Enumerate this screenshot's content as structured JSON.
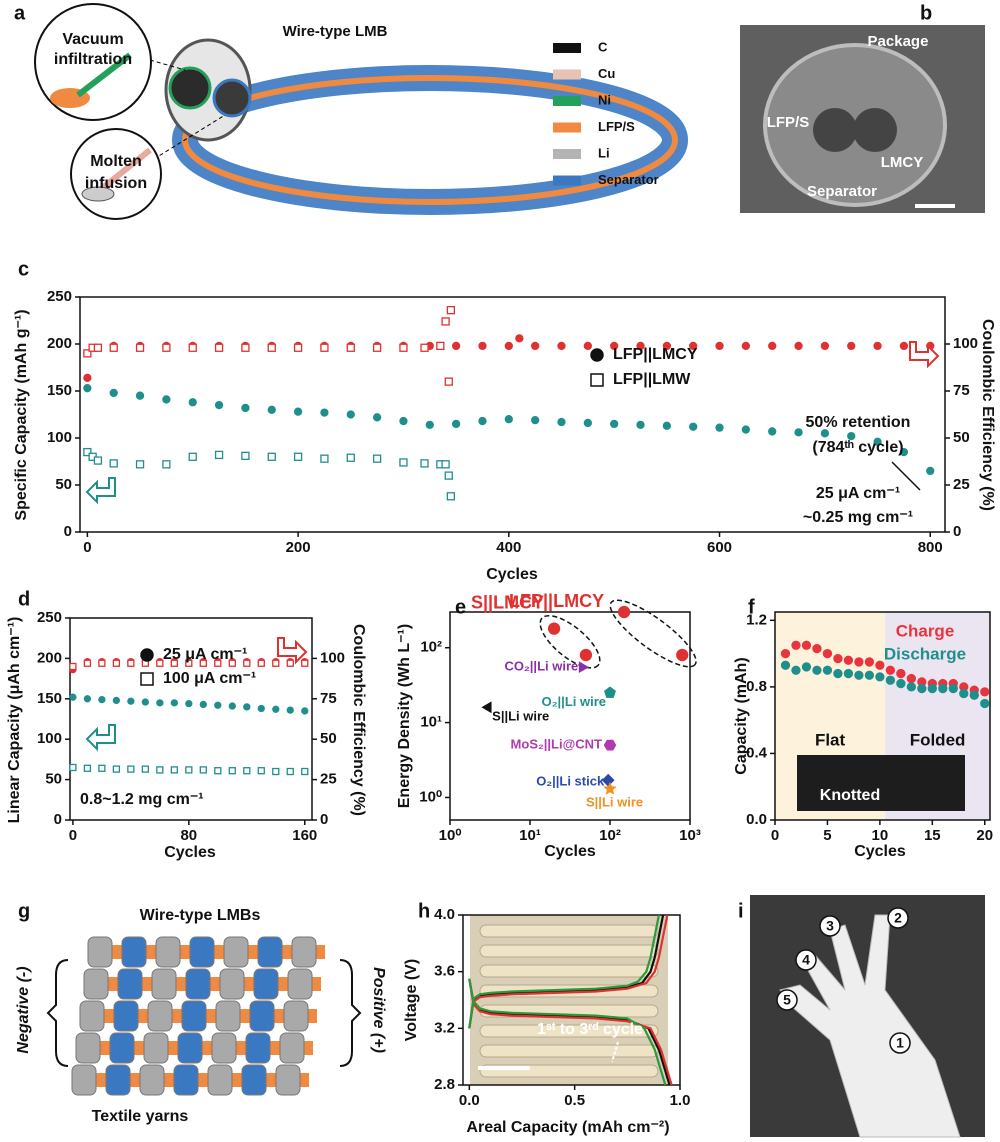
{
  "panel_labels": [
    "a",
    "b",
    "c",
    "d",
    "e",
    "f",
    "g",
    "h",
    "i"
  ],
  "diagram_a": {
    "title": "Wire-type LMB",
    "callouts": [
      [
        "Vacuum",
        "infiltration"
      ],
      [
        "Molten",
        "infusion"
      ]
    ],
    "legend": [
      {
        "label": "C",
        "color": "#111111"
      },
      {
        "label": "Cu",
        "color": "#e8c2b2"
      },
      {
        "label": "Ni",
        "color": "#23a05a"
      },
      {
        "label": "LFP/S",
        "color": "#f08a40"
      },
      {
        "label": "Li",
        "color": "#b4b4b4"
      },
      {
        "label": "Separator",
        "color": "#3a78c2"
      }
    ]
  },
  "image_b": {
    "labels": [
      "Package",
      "LFP/S",
      "LMCY",
      "Separator"
    ]
  },
  "chart_data": [
    {
      "type": "scatter",
      "xlabel": "Cycles",
      "ylabel": "Specific Capacity (mAh g⁻¹)",
      "y2label": "Coulombic Efficiency (%)",
      "xlim": [
        -7,
        814
      ],
      "xticks": [
        0,
        200,
        400,
        600,
        800
      ],
      "ylim": [
        0,
        250
      ],
      "yticks": [
        0,
        50,
        100,
        150,
        200,
        250
      ],
      "y2lim": [
        0,
        125
      ],
      "y2ticks": [
        0,
        25,
        50,
        75,
        100
      ],
      "legend": "center-right",
      "series": [
        {
          "name": "LFP||LMCY",
          "color": "#1f8f8c",
          "marker": "circle",
          "filled": true,
          "x": [
            0,
            25,
            50,
            75,
            100,
            125,
            150,
            175,
            200,
            225,
            250,
            275,
            300,
            325,
            350,
            375,
            400,
            425,
            450,
            475,
            500,
            525,
            550,
            575,
            600,
            625,
            650,
            675,
            700,
            725,
            750,
            775,
            800
          ],
          "values": [
            153,
            148,
            145,
            141,
            138,
            135,
            132,
            130,
            128,
            127,
            125,
            122,
            118,
            114,
            115,
            118,
            120,
            119,
            117,
            116,
            115,
            114,
            113,
            112,
            111,
            109,
            107,
            106,
            105,
            102,
            96,
            85,
            65
          ]
        },
        {
          "name": "LFP||LMW",
          "color": "#1f8f8c",
          "marker": "square",
          "filled": false,
          "x": [
            0,
            5,
            10,
            25,
            50,
            75,
            100,
            125,
            150,
            175,
            200,
            225,
            250,
            275,
            300,
            320,
            335,
            340,
            343,
            345
          ],
          "values": [
            85,
            80,
            76,
            73,
            72,
            72,
            80,
            82,
            81,
            80,
            80,
            78,
            79,
            78,
            74,
            73,
            72,
            72,
            60,
            38
          ]
        },
        {
          "name": "LFP||LMCY",
          "color": "#e03131",
          "marker": "circle",
          "filled": true,
          "axis": "y2",
          "x": [
            0,
            25,
            50,
            75,
            100,
            125,
            150,
            175,
            200,
            225,
            250,
            275,
            300,
            325,
            350,
            375,
            400,
            410,
            425,
            450,
            475,
            500,
            525,
            550,
            575,
            600,
            625,
            650,
            675,
            700,
            725,
            750,
            775,
            800
          ],
          "values": [
            82,
            99,
            99,
            99,
            99,
            99,
            99,
            99,
            99,
            99,
            99,
            99,
            99,
            99,
            99,
            99,
            99,
            103,
            99,
            99,
            99,
            99,
            99,
            99,
            99,
            99,
            99,
            99,
            99,
            99,
            99,
            99,
            99,
            99
          ]
        },
        {
          "name": "LFP||LMW",
          "color": "#e03131",
          "marker": "square",
          "filled": false,
          "axis": "y2",
          "x": [
            0,
            5,
            10,
            25,
            50,
            75,
            100,
            125,
            150,
            175,
            200,
            225,
            250,
            275,
            300,
            320,
            335,
            340,
            343,
            345
          ],
          "values": [
            95,
            98,
            98,
            98,
            98,
            98,
            98,
            98,
            98,
            98,
            98,
            98,
            98,
            98,
            98,
            98,
            99,
            112,
            80,
            118
          ]
        }
      ],
      "annotations": [
        "50% retention",
        "(784ᵗʰ cycle)",
        "25 μA cm⁻¹",
        "~0.25 mg cm⁻¹"
      ]
    },
    {
      "type": "scatter",
      "xlabel": "Cycles",
      "ylabel": "Linear Capacity (μAh cm⁻¹)",
      "y2label": "Coulombic Efficiency (%)",
      "xlim": [
        -2,
        165
      ],
      "xticks": [
        0,
        80,
        160
      ],
      "ylim": [
        0,
        250
      ],
      "yticks": [
        0,
        50,
        100,
        150,
        200,
        250
      ],
      "y2lim": [
        0,
        125
      ],
      "y2ticks": [
        0,
        25,
        50,
        75,
        100
      ],
      "legend": "top-center",
      "series": [
        {
          "name": "25 μA cm⁻¹",
          "color": "#1f8f8c",
          "marker": "circle",
          "filled": true,
          "x": [
            0,
            10,
            20,
            30,
            40,
            50,
            60,
            70,
            80,
            90,
            100,
            110,
            120,
            130,
            140,
            150,
            160
          ],
          "values": [
            152,
            150,
            149,
            148,
            147,
            146,
            145,
            145,
            144,
            143,
            142,
            141,
            140,
            138,
            137,
            136,
            135
          ]
        },
        {
          "name": "100 μA cm⁻¹",
          "color": "#1f8f8c",
          "marker": "square",
          "filled": false,
          "x": [
            0,
            10,
            20,
            30,
            40,
            50,
            60,
            70,
            80,
            90,
            100,
            110,
            120,
            130,
            140,
            150,
            160
          ],
          "values": [
            65,
            64,
            64,
            63,
            63,
            63,
            62,
            62,
            62,
            62,
            61,
            61,
            61,
            61,
            60,
            60,
            60
          ]
        },
        {
          "name": "25 μA cm⁻¹",
          "color": "#e03131",
          "marker": "circle",
          "filled": true,
          "axis": "y2",
          "x": [
            0,
            10,
            20,
            30,
            40,
            50,
            60,
            70,
            80,
            90,
            100,
            110,
            120,
            130,
            140,
            150,
            160
          ],
          "values": [
            93,
            98,
            98,
            98,
            98,
            98,
            98,
            98,
            98,
            98,
            98,
            98,
            98,
            98,
            98,
            98,
            98
          ]
        },
        {
          "name": "100 μA cm⁻¹",
          "color": "#e03131",
          "marker": "square",
          "filled": false,
          "axis": "y2",
          "x": [
            0,
            10,
            20,
            30,
            40,
            50,
            60,
            70,
            80,
            90,
            100,
            110,
            120,
            130,
            140,
            150,
            160
          ],
          "values": [
            95,
            97,
            97,
            97,
            97,
            97,
            97,
            97,
            97,
            97,
            97,
            97,
            97,
            97,
            97,
            97,
            97
          ]
        }
      ],
      "annotations": [
        "0.8~1.2 mg cm⁻¹"
      ]
    },
    {
      "type": "scatter",
      "xlabel": "Cycles",
      "ylabel": "Energy Density  (Wh L⁻¹)",
      "xlog": true,
      "ylog": true,
      "xlim": [
        1,
        1000
      ],
      "xticks": [
        {
          "value": 1,
          "label": "10⁰"
        },
        {
          "value": 10,
          "label": "10¹"
        },
        {
          "value": 100,
          "label": "10²"
        },
        {
          "value": 1000,
          "label": "10³"
        }
      ],
      "ylim": [
        0.5,
        300
      ],
      "yticks": [
        {
          "value": 1,
          "label": "10⁰"
        },
        {
          "value": 10,
          "label": "10¹"
        },
        {
          "value": 100,
          "label": "10²"
        }
      ],
      "series": [
        {
          "name": "S||LMCY",
          "color": "#e03131",
          "marker": "circle",
          "filled": true,
          "x": [
            20,
            50
          ],
          "values": [
            180,
            80
          ]
        },
        {
          "name": "LFP||LMCY",
          "color": "#e03131",
          "marker": "circle",
          "filled": true,
          "x": [
            150,
            800
          ],
          "values": [
            300,
            80
          ]
        },
        {
          "name": "CO₂||Li wire",
          "color": "#8b2fa8",
          "marker": "triangle-right",
          "filled": true,
          "x": [
            45
          ],
          "values": [
            55
          ]
        },
        {
          "name": "O₂||Li wire",
          "color": "#1f8f8c",
          "marker": "pentagon",
          "filled": true,
          "x": [
            100
          ],
          "values": [
            25
          ]
        },
        {
          "name": "S||Li wire",
          "color": "#111111",
          "marker": "triangle-left",
          "filled": true,
          "x": [
            3
          ],
          "values": [
            16
          ]
        },
        {
          "name": "MoS₂||Li@CNT",
          "color": "#b03bb0",
          "marker": "hexagon",
          "filled": true,
          "x": [
            100
          ],
          "values": [
            5
          ]
        },
        {
          "name": "O₂||Li stick",
          "color": "#2b4aa8",
          "marker": "diamond",
          "filled": true,
          "x": [
            95
          ],
          "values": [
            1.7
          ]
        },
        {
          "name": "S||Li wire",
          "color": "#f0901e",
          "marker": "star",
          "filled": true,
          "x": [
            100
          ],
          "values": [
            1.3
          ]
        }
      ]
    },
    {
      "type": "scatter",
      "xlabel": "Cycles",
      "ylabel": "Capacity (mAh)",
      "xlim": [
        0,
        20.5
      ],
      "xticks": [
        0,
        5,
        10,
        15,
        20
      ],
      "ylim": [
        0,
        1.25
      ],
      "yticks": [
        {
          "value": 0,
          "label": "0.0"
        },
        0.4,
        0.8,
        1.2
      ],
      "legend": "top-right",
      "regions": [
        {
          "label": "Flat",
          "from": 0,
          "to": 10.5,
          "color": "#fdf3dc"
        },
        {
          "label": "Folded",
          "from": 10.5,
          "to": 20.5,
          "color": "#ebe5f2"
        }
      ],
      "series": [
        {
          "name": "Charge",
          "color": "#e8343c",
          "marker": "circle",
          "filled": true,
          "x": [
            1,
            2,
            3,
            4,
            5,
            6,
            7,
            8,
            9,
            10,
            11,
            12,
            13,
            14,
            15,
            16,
            17,
            18,
            19,
            20
          ],
          "values": [
            1.0,
            1.05,
            1.05,
            1.03,
            1.0,
            0.97,
            0.96,
            0.95,
            0.95,
            0.93,
            0.9,
            0.88,
            0.85,
            0.83,
            0.82,
            0.82,
            0.82,
            0.8,
            0.78,
            0.77
          ]
        },
        {
          "name": "Discharge",
          "color": "#1f8f8c",
          "marker": "circle",
          "filled": true,
          "x": [
            1,
            2,
            3,
            4,
            5,
            6,
            7,
            8,
            9,
            10,
            11,
            12,
            13,
            14,
            15,
            16,
            17,
            18,
            19,
            20
          ],
          "values": [
            0.93,
            0.9,
            0.92,
            0.9,
            0.9,
            0.88,
            0.88,
            0.87,
            0.87,
            0.86,
            0.84,
            0.82,
            0.8,
            0.79,
            0.79,
            0.79,
            0.79,
            0.76,
            0.75,
            0.7
          ]
        }
      ],
      "annotations": [
        "Knotted"
      ]
    },
    {
      "type": "line",
      "xlabel": "Areal Capacity (mAh cm⁻²)",
      "ylabel": "Voltage (V)",
      "xlim": [
        -0.03,
        1.0
      ],
      "xticks": [
        {
          "value": 0,
          "label": "0.0"
        },
        0.5,
        {
          "value": 1,
          "label": "1.0"
        }
      ],
      "ylim": [
        2.8,
        4.0
      ],
      "yticks": [
        2.8,
        3.2,
        3.6,
        {
          "value": 4,
          "label": "4.0"
        }
      ],
      "series": [
        {
          "color": "#111111",
          "x": [
            0,
            0.02,
            0.05,
            0.1,
            0.2,
            0.4,
            0.6,
            0.75,
            0.82,
            0.86,
            0.88,
            0.9,
            0.92,
            null,
            0,
            0.02,
            0.05,
            0.1,
            0.2,
            0.4,
            0.6,
            0.75,
            0.85,
            0.9,
            0.93,
            0.95
          ],
          "values": [
            3.2,
            3.4,
            3.43,
            3.44,
            3.45,
            3.46,
            3.47,
            3.49,
            3.52,
            3.6,
            3.7,
            3.85,
            4.0,
            null,
            3.55,
            3.38,
            3.33,
            3.31,
            3.3,
            3.29,
            3.28,
            3.26,
            3.2,
            3.05,
            2.9,
            2.8
          ]
        },
        {
          "color": "#e03131",
          "x": [
            0,
            0.02,
            0.05,
            0.1,
            0.2,
            0.4,
            0.6,
            0.75,
            0.84,
            0.88,
            0.9,
            0.92,
            0.94,
            null,
            0,
            0.02,
            0.05,
            0.1,
            0.2,
            0.4,
            0.6,
            0.75,
            0.86,
            0.91,
            0.94,
            0.96
          ],
          "values": [
            3.2,
            3.39,
            3.42,
            3.43,
            3.44,
            3.45,
            3.46,
            3.48,
            3.52,
            3.6,
            3.7,
            3.85,
            4.0,
            null,
            3.55,
            3.37,
            3.32,
            3.3,
            3.29,
            3.28,
            3.27,
            3.25,
            3.2,
            3.05,
            2.9,
            2.8
          ]
        },
        {
          "color": "#2a9a3a",
          "x": [
            0,
            0.02,
            0.05,
            0.1,
            0.2,
            0.4,
            0.6,
            0.75,
            0.8,
            0.84,
            0.86,
            0.88,
            0.9,
            null,
            0,
            0.02,
            0.05,
            0.1,
            0.2,
            0.4,
            0.6,
            0.75,
            0.83,
            0.88,
            0.91,
            0.93
          ],
          "values": [
            3.2,
            3.41,
            3.44,
            3.45,
            3.46,
            3.47,
            3.48,
            3.5,
            3.53,
            3.6,
            3.7,
            3.85,
            4.0,
            null,
            3.55,
            3.39,
            3.34,
            3.32,
            3.31,
            3.3,
            3.29,
            3.27,
            3.2,
            3.05,
            2.9,
            2.8
          ]
        }
      ],
      "annotations": [
        "1ˢᵗ to 3ʳᵈ cycle"
      ]
    }
  ],
  "diagram_g": {
    "labels": [
      "Wire-type LMBs",
      "Textile yarns",
      "Negative (-)",
      "Positive (+)"
    ]
  },
  "image_i": {
    "labels": [
      "1",
      "2",
      "3",
      "4",
      "5"
    ]
  }
}
